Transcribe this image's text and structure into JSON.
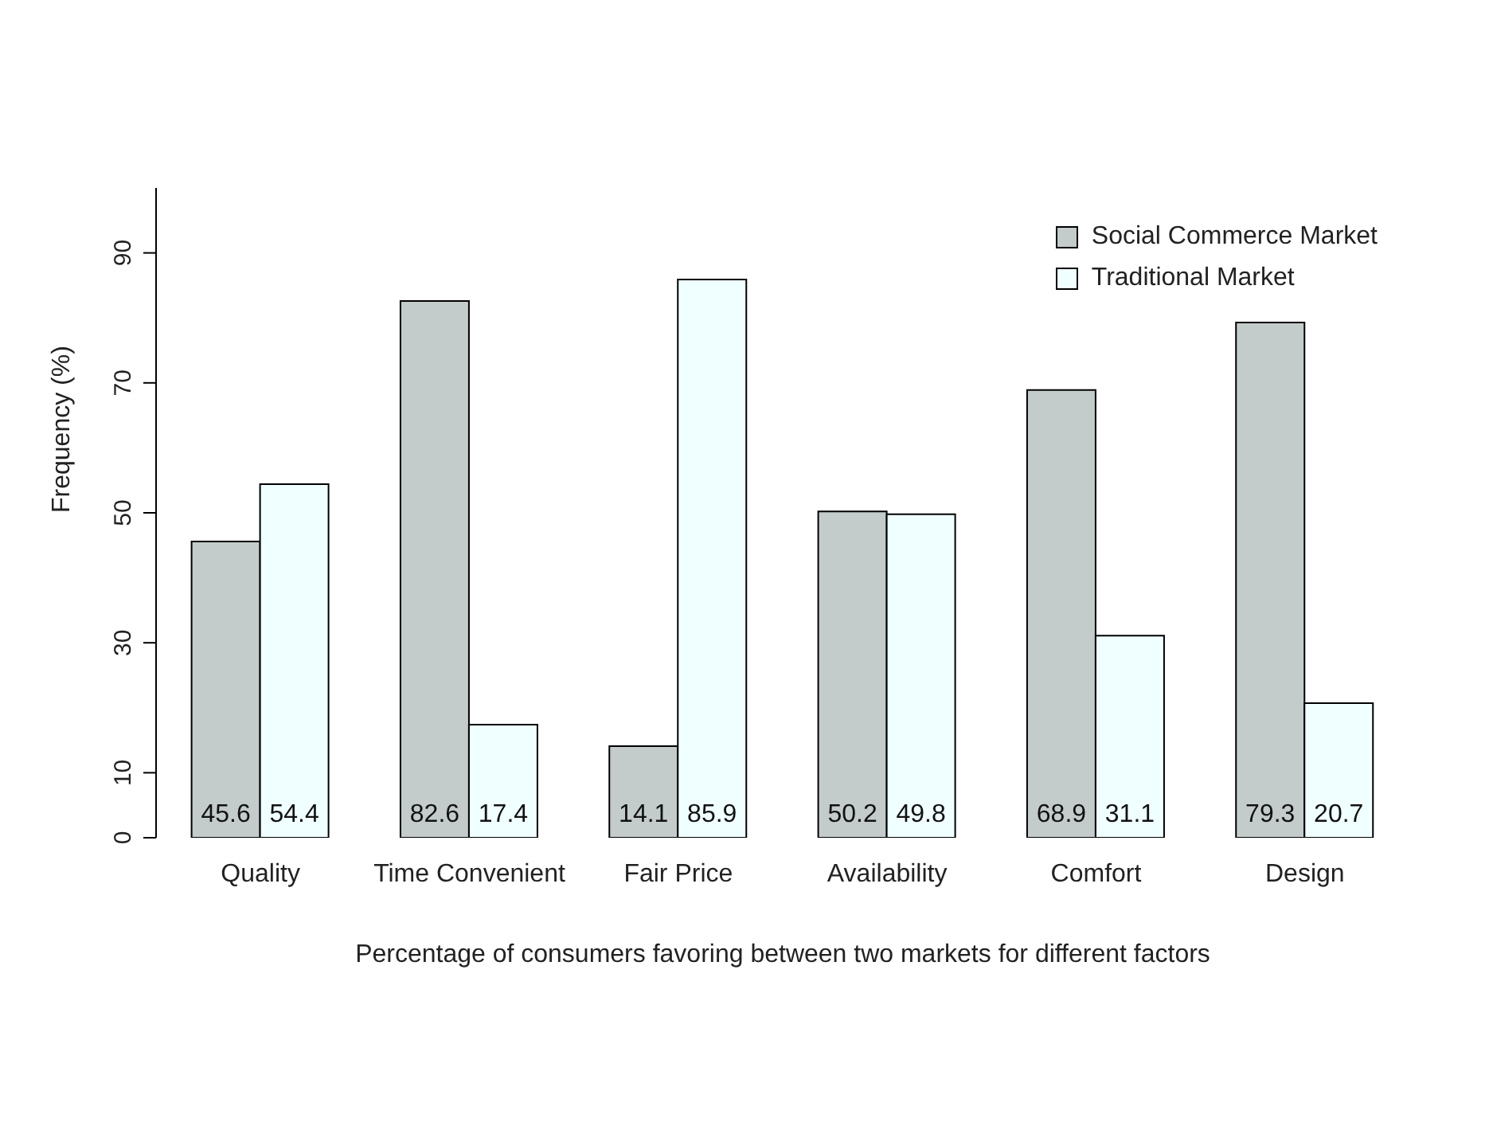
{
  "chart_data": {
    "type": "bar",
    "xlabel": "Percentage of consumers favoring between two markets for different factors",
    "ylabel": "Frequency (%)",
    "categories": [
      "Quality",
      "Time Convenient",
      "Fair Price",
      "Availability",
      "Comfort",
      "Design"
    ],
    "series": [
      {
        "name": "Social Commerce Market",
        "color": "#c3cbcb",
        "values": [
          45.6,
          82.6,
          14.1,
          50.2,
          68.9,
          79.3
        ]
      },
      {
        "name": "Traditional Market",
        "color": "#f0ffff",
        "values": [
          54.4,
          17.4,
          85.9,
          49.8,
          31.1,
          20.7
        ]
      }
    ],
    "ylim": [
      0,
      100
    ],
    "yticks": [
      0,
      10,
      30,
      50,
      70,
      90
    ],
    "data_labels": true,
    "legend": "top right",
    "grid": false
  }
}
